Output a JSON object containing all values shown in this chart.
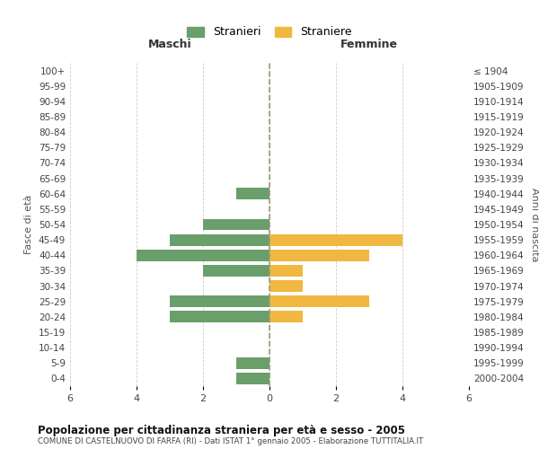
{
  "age_groups": [
    "100+",
    "95-99",
    "90-94",
    "85-89",
    "80-84",
    "75-79",
    "70-74",
    "65-69",
    "60-64",
    "55-59",
    "50-54",
    "45-49",
    "40-44",
    "35-39",
    "30-34",
    "25-29",
    "20-24",
    "15-19",
    "10-14",
    "5-9",
    "0-4"
  ],
  "birth_years": [
    "≤ 1904",
    "1905-1909",
    "1910-1914",
    "1915-1919",
    "1920-1924",
    "1925-1929",
    "1930-1934",
    "1935-1939",
    "1940-1944",
    "1945-1949",
    "1950-1954",
    "1955-1959",
    "1960-1964",
    "1965-1969",
    "1970-1974",
    "1975-1979",
    "1980-1984",
    "1985-1989",
    "1990-1994",
    "1995-1999",
    "2000-2004"
  ],
  "males": [
    0,
    0,
    0,
    0,
    0,
    0,
    0,
    0,
    1,
    0,
    2,
    3,
    4,
    2,
    0,
    3,
    3,
    0,
    0,
    1,
    1
  ],
  "females": [
    0,
    0,
    0,
    0,
    0,
    0,
    0,
    0,
    0,
    0,
    0,
    4,
    3,
    1,
    1,
    3,
    1,
    0,
    0,
    0,
    0
  ],
  "male_color": "#6a9e6a",
  "female_color": "#f0b840",
  "bar_height": 0.75,
  "xlim": 6,
  "xlabel_left": "Maschi",
  "xlabel_right": "Femmine",
  "ylabel_left": "Fasce di età",
  "ylabel_right": "Anni di nascita",
  "legend_male": "Stranieri",
  "legend_female": "Straniere",
  "title": "Popolazione per cittadinanza straniera per età e sesso - 2005",
  "subtitle": "COMUNE DI CASTELNUOVO DI FARFA (RI) - Dati ISTAT 1° gennaio 2005 - Elaborazione TUTTITALIA.IT",
  "grid_color": "#cccccc",
  "background_color": "#ffffff",
  "center_line_color": "#999977"
}
